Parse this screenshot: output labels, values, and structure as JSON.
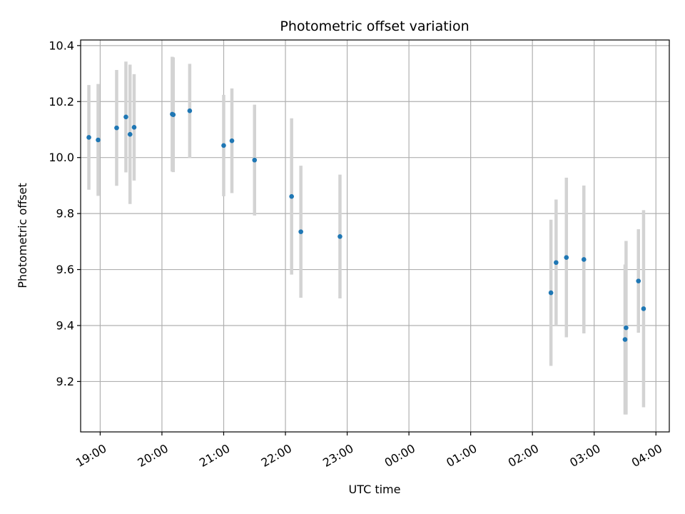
{
  "chart_data": {
    "type": "scatter",
    "title": "Photometric offset variation",
    "xlabel": "UTC time",
    "ylabel": "Photometric offset",
    "grid": true,
    "legend": "none",
    "colors": {
      "point": "#1f77b4",
      "errorbar": "#d3d3d3",
      "grid": "#b0b0b0"
    },
    "xlim": [
      "2024-01-01 18:41",
      "2024-01-02 04:13"
    ],
    "ylim": [
      9.02,
      10.42
    ],
    "x_ticks": [
      {
        "t": "2024-01-01 19:00",
        "label": "19:00"
      },
      {
        "t": "2024-01-01 20:00",
        "label": "20:00"
      },
      {
        "t": "2024-01-01 21:00",
        "label": "21:00"
      },
      {
        "t": "2024-01-01 22:00",
        "label": "22:00"
      },
      {
        "t": "2024-01-01 23:00",
        "label": "23:00"
      },
      {
        "t": "2024-01-02 00:00",
        "label": "00:00"
      },
      {
        "t": "2024-01-02 01:00",
        "label": "01:00"
      },
      {
        "t": "2024-01-02 02:00",
        "label": "02:00"
      },
      {
        "t": "2024-01-02 03:00",
        "label": "03:00"
      },
      {
        "t": "2024-01-02 04:00",
        "label": "04:00"
      }
    ],
    "y_ticks": [
      {
        "v": 9.2,
        "label": "9.2"
      },
      {
        "v": 9.4,
        "label": "9.4"
      },
      {
        "v": 9.6,
        "label": "9.6"
      },
      {
        "v": 9.8,
        "label": "9.8"
      },
      {
        "v": 10.0,
        "label": "10.0"
      },
      {
        "v": 10.2,
        "label": "10.2"
      },
      {
        "v": 10.4,
        "label": "10.4"
      }
    ],
    "points": [
      {
        "t": "2024-01-01 18:49",
        "y": 10.072,
        "err": 0.187
      },
      {
        "t": "2024-01-01 18:58",
        "y": 10.063,
        "err": 0.2
      },
      {
        "t": "2024-01-01 19:16",
        "y": 10.106,
        "err": 0.207
      },
      {
        "t": "2024-01-01 19:25",
        "y": 10.145,
        "err": 0.198
      },
      {
        "t": "2024-01-01 19:29",
        "y": 10.083,
        "err": 0.249
      },
      {
        "t": "2024-01-01 19:33",
        "y": 10.108,
        "err": 0.19
      },
      {
        "t": "2024-01-01 20:10",
        "y": 10.155,
        "err": 0.205
      },
      {
        "t": "2024-01-01 20:11",
        "y": 10.153,
        "err": 0.205
      },
      {
        "t": "2024-01-01 20:27",
        "y": 10.167,
        "err": 0.168
      },
      {
        "t": "2024-01-01 21:00",
        "y": 10.043,
        "err": 0.181
      },
      {
        "t": "2024-01-01 21:08",
        "y": 10.06,
        "err": 0.187
      },
      {
        "t": "2024-01-01 21:30",
        "y": 9.991,
        "err": 0.198
      },
      {
        "t": "2024-01-01 22:06",
        "y": 9.861,
        "err": 0.279
      },
      {
        "t": "2024-01-01 22:15",
        "y": 9.735,
        "err": 0.236
      },
      {
        "t": "2024-01-01 22:53",
        "y": 9.718,
        "err": 0.221
      },
      {
        "t": "2024-01-02 02:18",
        "y": 9.517,
        "err": 0.261
      },
      {
        "t": "2024-01-02 02:23",
        "y": 9.625,
        "err": 0.225
      },
      {
        "t": "2024-01-02 02:33",
        "y": 9.643,
        "err": 0.285
      },
      {
        "t": "2024-01-02 02:50",
        "y": 9.636,
        "err": 0.264
      },
      {
        "t": "2024-01-02 03:30",
        "y": 9.35,
        "err": 0.268
      },
      {
        "t": "2024-01-02 03:31",
        "y": 9.392,
        "err": 0.31
      },
      {
        "t": "2024-01-02 03:43",
        "y": 9.559,
        "err": 0.185
      },
      {
        "t": "2024-01-02 03:48",
        "y": 9.46,
        "err": 0.352
      }
    ]
  }
}
